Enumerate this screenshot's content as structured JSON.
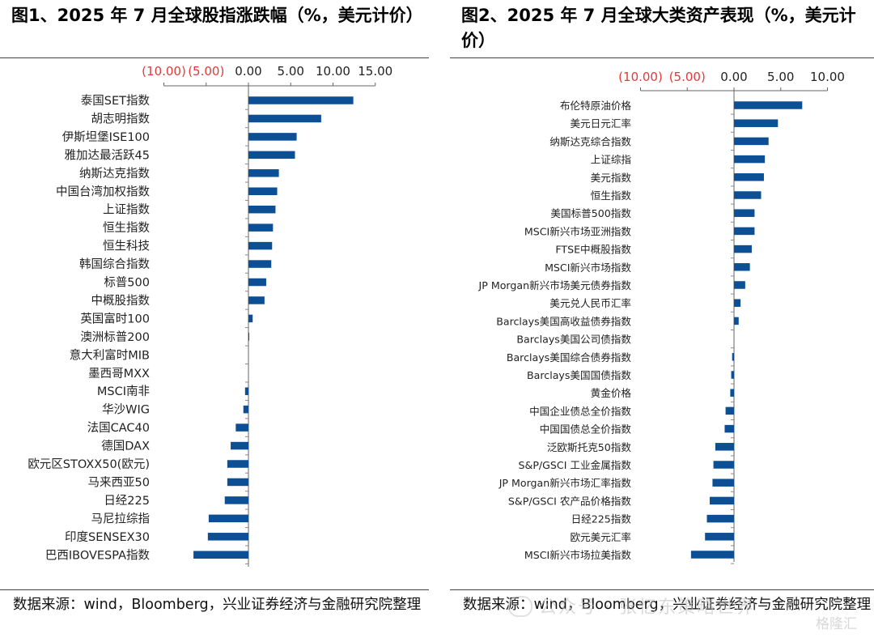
{
  "source_text": "数据来源：wind，Bloomberg，兴业证券经济与金融研究院整理",
  "watermark_text": "公众号 · 张忆东策略世界",
  "watermark_logo": "格隆汇",
  "chart_data": [
    {
      "type": "bar",
      "orientation": "horizontal",
      "title": "图1、2025 年 7 月全球股指涨跌幅（%，美元计价）",
      "xlim": [
        -10,
        15
      ],
      "xticks": [
        -10,
        -5,
        0,
        5,
        10,
        15
      ],
      "tick_labels": [
        "(10.00)",
        "(5.00)",
        "0.00",
        "5.00",
        "10.00",
        "15.00"
      ],
      "negative_tick_color": "#e23a3a",
      "bar_color": "#0d4f95",
      "categories": [
        "泰国SET指数",
        "胡志明指数",
        "伊斯坦堡ISE100",
        "雅加达最活跃45",
        "纳斯达克指数",
        "中国台湾加权指数",
        "上证指数",
        "恒生指数",
        "恒生科技",
        "韩国综合指数",
        "标普500",
        "中概股指数",
        "英国富时100",
        "澳洲标普200",
        "意大利富时MIB",
        "墨西哥MXX",
        "MSCI南非",
        "华沙WIG",
        "法国CAC40",
        "德国DAX",
        "欧元区STOXX50(欧元)",
        "马来西亚50",
        "日经225",
        "马尼拉综指",
        "印度SENSEX30",
        "巴西IBOVESPA指数"
      ],
      "values": [
        12.4,
        8.6,
        5.7,
        5.5,
        3.6,
        3.4,
        3.2,
        2.9,
        2.8,
        2.7,
        2.1,
        1.9,
        0.5,
        0.1,
        0.0,
        0.0,
        -0.4,
        -0.6,
        -1.5,
        -2.1,
        -2.5,
        -2.5,
        -2.8,
        -4.7,
        -4.8,
        -6.5
      ]
    },
    {
      "type": "bar",
      "orientation": "horizontal",
      "title": "图2、2025 年 7 月全球大类资产表现（%，美元计价）",
      "xlim": [
        -10,
        10
      ],
      "xticks": [
        -10,
        -5,
        0,
        5,
        10
      ],
      "tick_labels": [
        "(10.00)",
        "(5.00)",
        "0.00",
        "5.00",
        "10.00"
      ],
      "negative_tick_color": "#e23a3a",
      "bar_color": "#0d4f95",
      "categories": [
        "布伦特原油价格",
        "美元日元汇率",
        "纳斯达克综合指数",
        "上证综指",
        "美元指数",
        "恒生指数",
        "美国标普500指数",
        "MSCI新兴市场亚洲指数",
        "FTSE中概股指数",
        "MSCI新兴市场指数",
        "JP Morgan新兴市场美元债券指数",
        "美元兑人民币汇率",
        "Barclays美国高收益债券指数",
        "Barclays美国公司债指数",
        "Barclays美国综合债券指数",
        "Barclays美国国债指数",
        "黄金价格",
        "中国企业债总全价指数",
        "中国国债总全价指数",
        "泛欧斯托克50指数",
        "S&P/GSCI 工业金属指数",
        "JP Morgan新兴市场汇率指数",
        "S&P/GSCI 农产品价格指数",
        "日经225指数",
        "欧元美元汇率",
        "MSCI新兴市场拉美指数"
      ],
      "values": [
        7.3,
        4.7,
        3.7,
        3.3,
        3.2,
        2.9,
        2.2,
        2.2,
        1.9,
        1.7,
        1.2,
        0.7,
        0.5,
        0.0,
        -0.2,
        -0.3,
        -0.4,
        -0.9,
        -1.0,
        -2.0,
        -2.2,
        -2.3,
        -2.6,
        -2.9,
        -3.1,
        -4.6
      ]
    }
  ]
}
